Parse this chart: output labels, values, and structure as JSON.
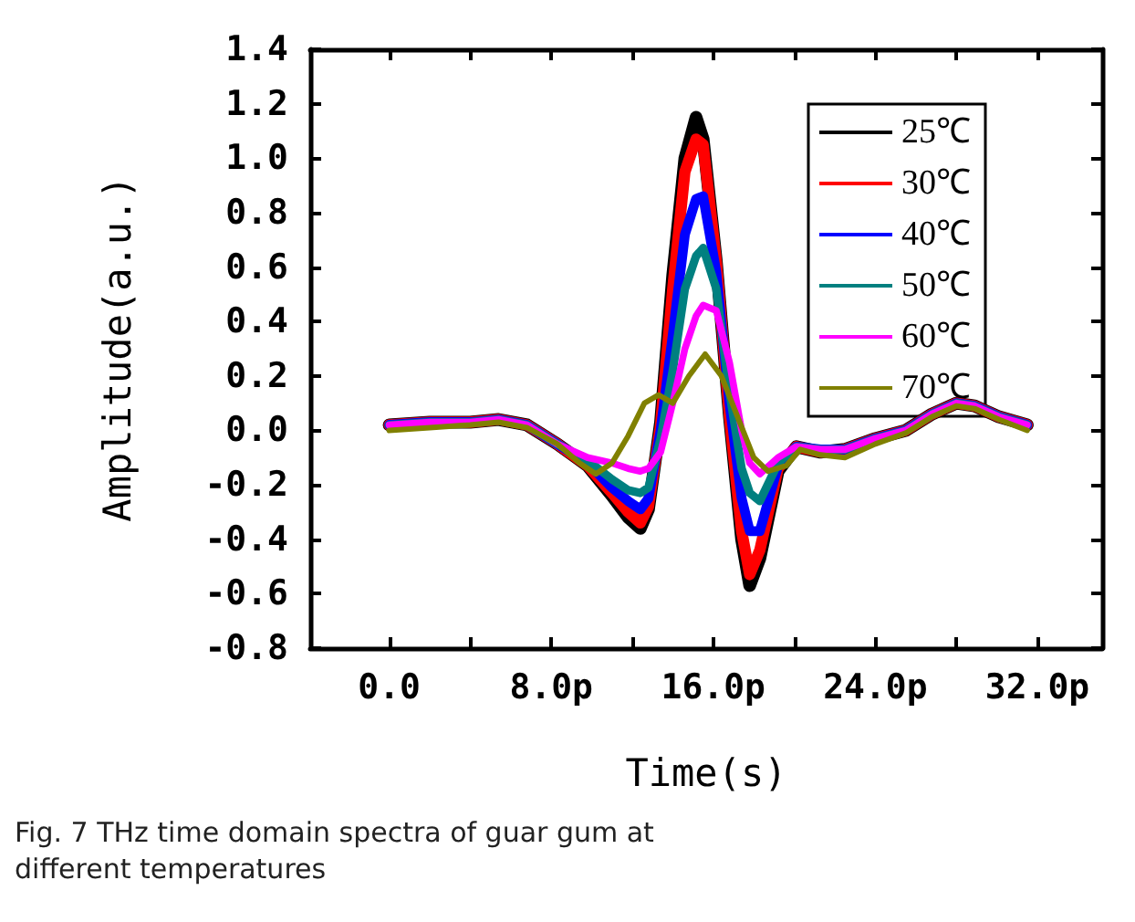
{
  "chart_data": {
    "type": "line",
    "xlabel": "Time(s)",
    "ylabel": "Amplitude(a.u.)",
    "annotations": [
      "Fig. 7 THz time domain spectra of guar gum at different temperatures"
    ],
    "x": [
      0,
      2,
      4,
      5.4,
      6.8,
      8.3,
      9.8,
      11,
      11.8,
      12.4,
      12.8,
      13.4,
      14,
      14.6,
      15.15,
      15.5,
      16.15,
      16.8,
      17.4,
      17.8,
      18.3,
      19.2,
      20.1,
      21.3,
      22.5,
      24,
      25.5,
      26.8,
      28,
      28.9,
      30.1,
      31.5
    ],
    "series": [
      {
        "name": "25℃",
        "color": "#000000",
        "values": [
          0.02,
          0.03,
          0.03,
          0.04,
          0.02,
          -0.05,
          -0.13,
          -0.24,
          -0.32,
          -0.36,
          -0.29,
          0.03,
          0.57,
          1.0,
          1.15,
          1.07,
          0.62,
          0.05,
          -0.4,
          -0.57,
          -0.47,
          -0.15,
          -0.06,
          -0.08,
          -0.07,
          -0.03,
          0,
          0.06,
          0.1,
          0.09,
          0.05,
          0.02
        ]
      },
      {
        "name": "30℃",
        "color": "#ff0000",
        "values": [
          0.02,
          0.03,
          0.03,
          0.04,
          0.02,
          -0.05,
          -0.13,
          -0.23,
          -0.3,
          -0.34,
          -0.28,
          0.02,
          0.52,
          0.95,
          1.07,
          1.05,
          0.62,
          0.05,
          -0.37,
          -0.53,
          -0.44,
          -0.14,
          -0.06,
          -0.08,
          -0.07,
          -0.03,
          0,
          0.06,
          0.1,
          0.09,
          0.05,
          0.02
        ]
      },
      {
        "name": "40℃",
        "color": "#0000ff",
        "values": [
          0.02,
          0.03,
          0.03,
          0.04,
          0.02,
          -0.05,
          -0.12,
          -0.21,
          -0.26,
          -0.29,
          -0.25,
          0.0,
          0.35,
          0.72,
          0.85,
          0.86,
          0.58,
          0.1,
          -0.25,
          -0.37,
          -0.37,
          -0.13,
          -0.06,
          -0.07,
          -0.07,
          -0.03,
          0,
          0.06,
          0.1,
          0.09,
          0.05,
          0.02
        ]
      },
      {
        "name": "50℃",
        "color": "#008080",
        "values": [
          0.02,
          0.03,
          0.03,
          0.04,
          0.02,
          -0.05,
          -0.11,
          -0.18,
          -0.22,
          -0.23,
          -0.21,
          -0.03,
          0.22,
          0.52,
          0.64,
          0.67,
          0.52,
          0.14,
          -0.14,
          -0.23,
          -0.26,
          -0.12,
          -0.06,
          -0.07,
          -0.07,
          -0.03,
          0,
          0.06,
          0.1,
          0.09,
          0.05,
          0.02
        ]
      },
      {
        "name": "60℃",
        "color": "#ff00ff",
        "values": [
          0.02,
          0.03,
          0.03,
          0.04,
          0.02,
          -0.05,
          -0.1,
          -0.12,
          -0.14,
          -0.15,
          -0.14,
          -0.08,
          0.1,
          0.3,
          0.42,
          0.46,
          0.44,
          0.25,
          0.0,
          -0.12,
          -0.16,
          -0.1,
          -0.06,
          -0.07,
          -0.07,
          -0.03,
          0,
          0.06,
          0.1,
          0.09,
          0.05,
          0.02
        ]
      },
      {
        "name": "70℃",
        "color": "#808000",
        "x": [
          0,
          2,
          4,
          5.4,
          6.8,
          8.3,
          9.4,
          10.2,
          11,
          11.8,
          12.6,
          13.3,
          14,
          14.8,
          15.6,
          16.4,
          17.2,
          18,
          18.7,
          19.6,
          20.3,
          21.3,
          22.5,
          24,
          25.5,
          26.8,
          28,
          28.9,
          30.1,
          31.5
        ],
        "values": [
          0,
          0.01,
          0.02,
          0.03,
          0.01,
          -0.05,
          -0.12,
          -0.16,
          -0.12,
          -0.02,
          0.1,
          0.13,
          0.1,
          0.2,
          0.28,
          0.2,
          0.05,
          -0.1,
          -0.15,
          -0.13,
          -0.07,
          -0.09,
          -0.1,
          -0.05,
          -0.01,
          0.05,
          0.09,
          0.08,
          0.04,
          0.0
        ]
      }
    ],
    "xlim": [
      -3.9,
      35.2
    ],
    "xticks": [
      {
        "value": 0,
        "label": "0.0"
      },
      {
        "value": 4,
        "label": null
      },
      {
        "value": 8,
        "label": "8.0p"
      },
      {
        "value": 12,
        "label": null
      },
      {
        "value": 16,
        "label": "16.0p"
      },
      {
        "value": 20,
        "label": null
      },
      {
        "value": 24,
        "label": "24.0p"
      },
      {
        "value": 28,
        "label": null
      },
      {
        "value": 32,
        "label": "32.0p"
      }
    ],
    "ylim": [
      -0.8,
      1.4
    ],
    "yticks": [
      {
        "value": -0.8,
        "label": "-0.8"
      },
      {
        "value": -0.6,
        "label": "-0.6"
      },
      {
        "value": -0.4,
        "label": "-0.4"
      },
      {
        "value": -0.2,
        "label": "-0.2"
      },
      {
        "value": 0,
        "label": "0.0"
      },
      {
        "value": 0.2,
        "label": "0.2"
      },
      {
        "value": 0.4,
        "label": "0.4"
      },
      {
        "value": 0.6,
        "label": "0.6"
      },
      {
        "value": 0.8,
        "label": "0.8"
      },
      {
        "value": 1.0,
        "label": "1.0"
      },
      {
        "value": 1.2,
        "label": "1.2"
      },
      {
        "value": 1.4,
        "label": "1.4"
      }
    ],
    "legend": "top right",
    "grid": false,
    "marker": "none",
    "line_style": "solid"
  }
}
